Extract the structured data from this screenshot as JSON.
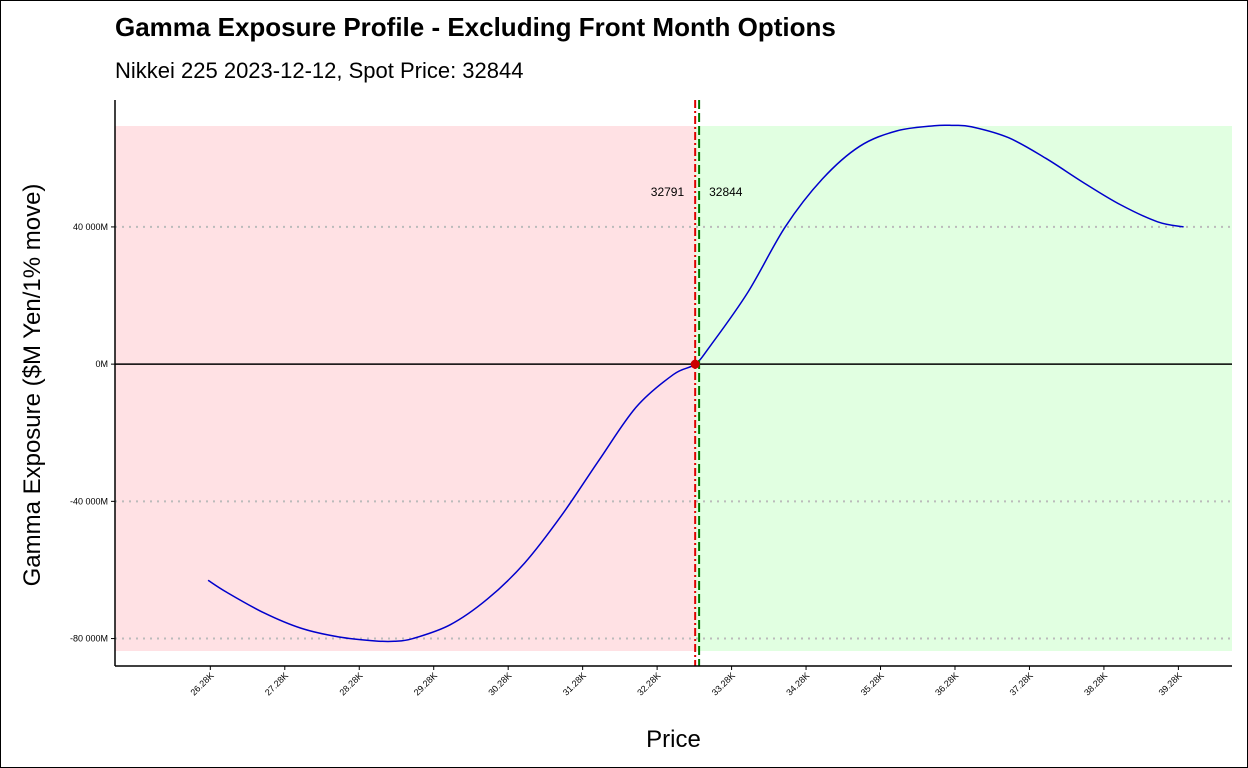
{
  "chart_data": {
    "type": "line",
    "title": "Gamma Exposure Profile - Excluding Front Month Options",
    "subtitle": "Nikkei 225 2023-12-12, Spot Price: 32844",
    "xlabel": "Price",
    "ylabel": "Gamma Exposure ($M Yen/1% move)",
    "xlim": [
      25000,
      40000
    ],
    "ylim": [
      -88000,
      77000
    ],
    "x_ticks": [
      26280,
      27280,
      28280,
      29280,
      30280,
      31280,
      32280,
      33280,
      34280,
      35280,
      36280,
      37280,
      38280,
      39280
    ],
    "x_tick_labels": [
      "26.28K",
      "27.28K",
      "28.28K",
      "29.28K",
      "30.28K",
      "31.28K",
      "32.28K",
      "33.28K",
      "34.28K",
      "35.28K",
      "36.28K",
      "37.28K",
      "38.28K",
      "39.28K"
    ],
    "y_ticks": [
      -80000,
      -40000,
      0,
      40000
    ],
    "y_tick_labels": [
      "-80 000M",
      "-40 000M",
      "0M",
      "40 000M"
    ],
    "grid": "horizontal dotted",
    "legend": "none",
    "series": [
      {
        "x": [
          26250,
          26500,
          27000,
          27500,
          28000,
          28500,
          28750,
          29000,
          29500,
          30000,
          30500,
          31000,
          31500,
          32000,
          32500,
          32791,
          33000,
          33500,
          34000,
          34500,
          35000,
          35500,
          36000,
          36250,
          36500,
          37000,
          37500,
          38000,
          38500,
          39000,
          39350
        ],
        "y": [
          -63000,
          -66500,
          -72500,
          -77000,
          -79500,
          -80700,
          -80800,
          -80000,
          -76000,
          -68500,
          -58000,
          -44000,
          -28000,
          -12500,
          -3000,
          0,
          5500,
          21000,
          40000,
          54000,
          63500,
          68000,
          69500,
          69600,
          69200,
          66000,
          60000,
          53000,
          46500,
          41500,
          40000
        ],
        "color": "#0000cc"
      }
    ],
    "zero_gamma": {
      "value": 32791,
      "label": "32791",
      "color": "#e00000"
    },
    "spot": {
      "value": 32844,
      "label": "32844",
      "color": "#007700"
    },
    "negative_region_color": "#ffe1e4",
    "positive_region_color": "#e1ffe1"
  }
}
